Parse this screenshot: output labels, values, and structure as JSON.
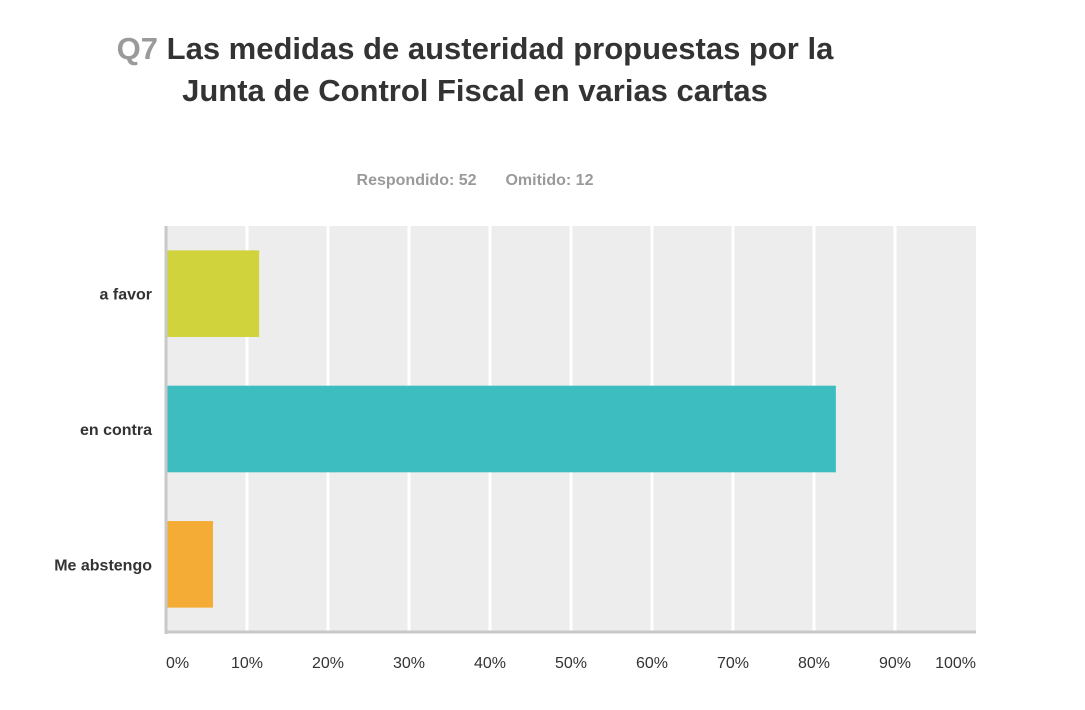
{
  "question": {
    "number": "Q7",
    "text": "Las medidas de austeridad propuestas por la Junta de Control Fiscal en varias cartas"
  },
  "stats": {
    "answered_label": "Respondido:",
    "answered_value": "52",
    "skipped_label": "Omitido:",
    "skipped_value": "12"
  },
  "chart_data": {
    "type": "bar",
    "orientation": "horizontal",
    "categories": [
      "a favor",
      "en contra",
      "Me abstengo"
    ],
    "values": [
      11.5,
      82.7,
      5.8
    ],
    "colors": [
      "#d0d33c",
      "#3dbdbf",
      "#f5ac37"
    ],
    "xlim": [
      0,
      100
    ],
    "xticks": [
      "0%",
      "10%",
      "20%",
      "30%",
      "40%",
      "50%",
      "60%",
      "70%",
      "80%",
      "90%",
      "100%"
    ],
    "grid": true,
    "plot_background": "#ededed"
  }
}
